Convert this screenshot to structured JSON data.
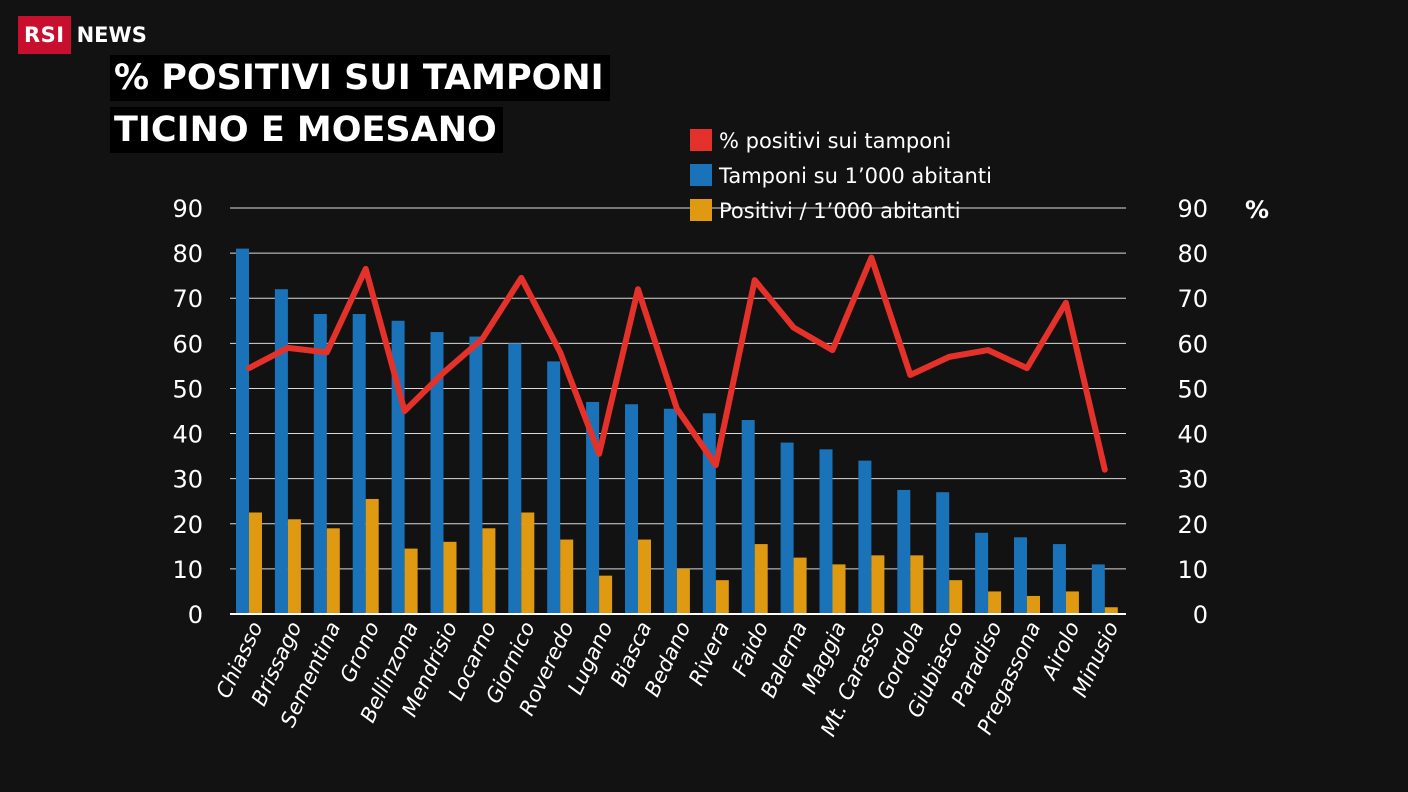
{
  "header": {
    "logo_box": "RSI",
    "logo_text": "NEWS",
    "title_line1": "% POSITIVI SUI TAMPONI",
    "title_line2": "TICINO E MOESANO"
  },
  "colors": {
    "background": "#121212",
    "tamponi": "#1a73b8",
    "positivi": "#e09a12",
    "percent": "#e4322b",
    "grid": "#d9d9d9",
    "brand": "#c8102e"
  },
  "chart_data": {
    "type": "bar",
    "categories": [
      "Chiasso",
      "Brissago",
      "Sementina",
      "Grono",
      "Bellinzona",
      "Mendrisio",
      "Locarno",
      "Giornico",
      "Roveredo",
      "Lugano",
      "Biasca",
      "Bedano",
      "Rivera",
      "Faido",
      "Balerna",
      "Maggia",
      "Mt. Carasso",
      "Gordola",
      "Giubiasco",
      "Paradiso",
      "Pregassona",
      "Airolo",
      "Minusio"
    ],
    "series": [
      {
        "name": "Tamponi su 1’000 abitanti",
        "type": "bar",
        "color": "#1a73b8",
        "values": [
          81,
          72,
          66.5,
          66.5,
          65,
          62.5,
          61.5,
          60,
          56,
          47,
          46.5,
          45.5,
          44.5,
          43,
          38,
          36.5,
          34,
          27.5,
          27,
          18,
          17,
          15.5,
          11
        ]
      },
      {
        "name": "Positivi / 1’000 abitanti",
        "type": "bar",
        "color": "#e09a12",
        "values": [
          22.5,
          21,
          19,
          25.5,
          14.5,
          16,
          19,
          22.5,
          16.5,
          8.5,
          16.5,
          10,
          7.5,
          15.5,
          12.5,
          11,
          13,
          13,
          7.5,
          5,
          4,
          5,
          1.5
        ]
      },
      {
        "name": "% positivi sui tamponi",
        "type": "line",
        "color": "#e4322b",
        "values": [
          54.5,
          59,
          58,
          76.5,
          45,
          53.5,
          61,
          74.5,
          58,
          35.5,
          72,
          45.5,
          33,
          74,
          63.5,
          58.5,
          79,
          53,
          57,
          58.5,
          54.5,
          69,
          32
        ]
      }
    ],
    "yticks": [
      0,
      10,
      20,
      30,
      40,
      50,
      60,
      70,
      80,
      90
    ],
    "ylim": [
      0,
      90
    ],
    "y2label": "%",
    "grid": true,
    "legend_position": "top-right"
  }
}
